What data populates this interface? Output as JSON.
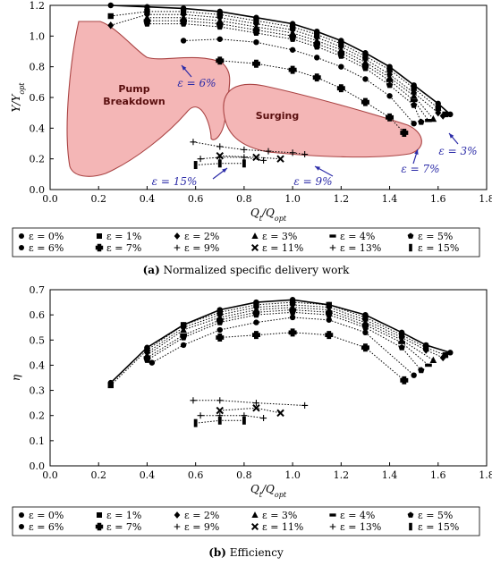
{
  "chart_data": [
    {
      "type": "line",
      "caption_label": "(a)",
      "caption_text": "Normalized specific delivery work",
      "xlabel": "Q_t/Q_opt",
      "ylabel": "Y/Y_opt",
      "xlim": [
        0.0,
        1.8
      ],
      "ylim": [
        0.0,
        1.2
      ],
      "xticks": [
        "0.0",
        "0.2",
        "0.4",
        "0.6",
        "0.8",
        "1.0",
        "1.2",
        "1.4",
        "1.6",
        "1.8"
      ],
      "yticks": [
        "0.0",
        "0.2",
        "0.4",
        "0.6",
        "0.8",
        "1.0",
        "1.2"
      ],
      "grid": false,
      "legend_position": "below",
      "regions": [
        {
          "label_lines": [
            "Pump",
            "Breakdown"
          ],
          "color": "#f4b6b6"
        },
        {
          "label_lines": [
            "Surging"
          ],
          "color": "#f4b6b6"
        }
      ],
      "annotations": [
        "ε = 6%",
        "ε = 15%",
        "ε = 9%",
        "ε = 7%",
        "ε = 3%"
      ],
      "series": [
        {
          "name": "ε = 0%",
          "marker": "circle",
          "x": [
            0.25,
            0.4,
            0.55,
            0.7,
            0.85,
            1.0,
            1.1,
            1.2,
            1.3,
            1.4,
            1.5,
            1.6,
            1.65
          ],
          "y": [
            1.2,
            1.19,
            1.18,
            1.16,
            1.12,
            1.08,
            1.03,
            0.97,
            0.89,
            0.8,
            0.68,
            0.56,
            0.49
          ]
        },
        {
          "name": "ε = 1%",
          "marker": "square",
          "x": [
            0.25,
            0.4,
            0.55,
            0.7,
            0.85,
            1.0,
            1.1,
            1.2,
            1.3,
            1.4,
            1.5,
            1.6,
            1.63
          ],
          "y": [
            1.13,
            1.16,
            1.16,
            1.14,
            1.1,
            1.06,
            1.01,
            0.95,
            0.87,
            0.78,
            0.66,
            0.53,
            0.49
          ]
        },
        {
          "name": "ε = 2%",
          "marker": "diamond",
          "x": [
            0.25,
            0.4,
            0.55,
            0.7,
            0.85,
            1.0,
            1.1,
            1.2,
            1.3,
            1.4,
            1.5,
            1.6,
            1.62
          ],
          "y": [
            1.07,
            1.14,
            1.14,
            1.12,
            1.08,
            1.04,
            0.99,
            0.93,
            0.85,
            0.75,
            0.63,
            0.5,
            0.48
          ]
        },
        {
          "name": "ε = 3%",
          "marker": "triangle",
          "x": [
            0.4,
            0.55,
            0.7,
            0.85,
            1.0,
            1.1,
            1.2,
            1.3,
            1.4,
            1.5,
            1.58
          ],
          "y": [
            1.12,
            1.12,
            1.1,
            1.06,
            1.02,
            0.97,
            0.91,
            0.83,
            0.73,
            0.61,
            0.46
          ]
        },
        {
          "name": "ε = 4%",
          "marker": "dash",
          "x": [
            0.4,
            0.55,
            0.7,
            0.85,
            1.0,
            1.1,
            1.2,
            1.3,
            1.4,
            1.5,
            1.56
          ],
          "y": [
            1.1,
            1.1,
            1.08,
            1.04,
            1.0,
            0.95,
            0.89,
            0.81,
            0.71,
            0.58,
            0.45
          ]
        },
        {
          "name": "ε = 5%",
          "marker": "pentagon",
          "x": [
            0.4,
            0.55,
            0.7,
            0.85,
            1.0,
            1.1,
            1.2,
            1.3,
            1.4,
            1.5,
            1.53
          ],
          "y": [
            1.08,
            1.08,
            1.06,
            1.02,
            0.98,
            0.93,
            0.87,
            0.79,
            0.68,
            0.55,
            0.44
          ]
        },
        {
          "name": "ε = 6%",
          "marker": "circle",
          "x": [
            0.55,
            0.7,
            0.85,
            1.0,
            1.1,
            1.2,
            1.3,
            1.4,
            1.5
          ],
          "y": [
            0.97,
            0.98,
            0.96,
            0.91,
            0.86,
            0.8,
            0.72,
            0.61,
            0.43
          ]
        },
        {
          "name": "ε = 7%",
          "marker": "cross",
          "x": [
            0.7,
            0.85,
            1.0,
            1.1,
            1.2,
            1.3,
            1.4,
            1.46
          ],
          "y": [
            0.84,
            0.82,
            0.78,
            0.73,
            0.66,
            0.57,
            0.47,
            0.37
          ]
        },
        {
          "name": "ε = 9%",
          "marker": "plus",
          "x": [
            0.59,
            0.7,
            0.8,
            0.9,
            1.0,
            1.05
          ],
          "y": [
            0.31,
            0.28,
            0.26,
            0.25,
            0.24,
            0.23
          ]
        },
        {
          "name": "ε = 11%",
          "marker": "x",
          "x": [
            0.7,
            0.85,
            0.95
          ],
          "y": [
            0.22,
            0.21,
            0.2
          ]
        },
        {
          "name": "ε = 13%",
          "marker": "plus",
          "x": [
            0.62,
            0.7,
            0.8,
            0.88
          ],
          "y": [
            0.2,
            0.21,
            0.21,
            0.19
          ]
        },
        {
          "name": "ε = 15%",
          "marker": "bar",
          "x": [
            0.6,
            0.7,
            0.8
          ],
          "y": [
            0.16,
            0.17,
            0.17
          ]
        }
      ]
    },
    {
      "type": "line",
      "caption_label": "(b)",
      "caption_text": "Efficiency",
      "xlabel": "Q_t/Q_opt",
      "ylabel": "η",
      "xlim": [
        0.0,
        1.8
      ],
      "ylim": [
        0.0,
        0.7
      ],
      "xticks": [
        "0.0",
        "0.2",
        "0.4",
        "0.6",
        "0.8",
        "1.0",
        "1.2",
        "1.4",
        "1.6",
        "1.8"
      ],
      "yticks": [
        "0.0",
        "0.1",
        "0.2",
        "0.3",
        "0.4",
        "0.5",
        "0.6",
        "0.7"
      ],
      "grid": false,
      "legend_position": "below",
      "series": [
        {
          "name": "ε = 0%",
          "marker": "circle",
          "x": [
            0.25,
            0.4,
            0.55,
            0.7,
            0.85,
            1.0,
            1.15,
            1.3,
            1.45,
            1.55,
            1.65
          ],
          "y": [
            0.33,
            0.47,
            0.56,
            0.62,
            0.65,
            0.66,
            0.64,
            0.6,
            0.53,
            0.48,
            0.45
          ]
        },
        {
          "name": "ε = 1%",
          "marker": "square",
          "x": [
            0.25,
            0.4,
            0.55,
            0.7,
            0.85,
            1.0,
            1.15,
            1.3,
            1.45,
            1.55,
            1.63
          ],
          "y": [
            0.32,
            0.46,
            0.56,
            0.61,
            0.64,
            0.65,
            0.64,
            0.59,
            0.52,
            0.47,
            0.44
          ]
        },
        {
          "name": "ε = 2%",
          "marker": "diamond",
          "x": [
            0.4,
            0.55,
            0.7,
            0.85,
            1.0,
            1.15,
            1.3,
            1.45,
            1.55,
            1.62
          ],
          "y": [
            0.45,
            0.55,
            0.6,
            0.63,
            0.64,
            0.63,
            0.58,
            0.51,
            0.46,
            0.43
          ]
        },
        {
          "name": "ε = 3%",
          "marker": "triangle",
          "x": [
            0.4,
            0.55,
            0.7,
            0.85,
            1.0,
            1.15,
            1.3,
            1.45,
            1.58
          ],
          "y": [
            0.44,
            0.54,
            0.59,
            0.62,
            0.63,
            0.62,
            0.57,
            0.5,
            0.42
          ]
        },
        {
          "name": "ε = 4%",
          "marker": "dash",
          "x": [
            0.4,
            0.55,
            0.7,
            0.85,
            1.0,
            1.15,
            1.3,
            1.45,
            1.56
          ],
          "y": [
            0.43,
            0.52,
            0.58,
            0.61,
            0.62,
            0.61,
            0.56,
            0.49,
            0.4
          ]
        },
        {
          "name": "ε = 5%",
          "marker": "pentagon",
          "x": [
            0.4,
            0.55,
            0.7,
            0.85,
            1.0,
            1.15,
            1.3,
            1.45,
            1.53
          ],
          "y": [
            0.42,
            0.51,
            0.57,
            0.6,
            0.61,
            0.6,
            0.55,
            0.47,
            0.38
          ]
        },
        {
          "name": "ε = 6%",
          "marker": "circle",
          "x": [
            0.42,
            0.55,
            0.7,
            0.85,
            1.0,
            1.15,
            1.3,
            1.5
          ],
          "y": [
            0.41,
            0.48,
            0.54,
            0.57,
            0.59,
            0.58,
            0.53,
            0.36
          ]
        },
        {
          "name": "ε = 7%",
          "marker": "cross",
          "x": [
            0.7,
            0.85,
            1.0,
            1.15,
            1.3,
            1.46
          ],
          "y": [
            0.51,
            0.52,
            0.53,
            0.52,
            0.47,
            0.34
          ]
        },
        {
          "name": "ε = 9%",
          "marker": "plus",
          "x": [
            0.59,
            0.7,
            0.85,
            1.05
          ],
          "y": [
            0.26,
            0.26,
            0.25,
            0.24
          ]
        },
        {
          "name": "ε = 11%",
          "marker": "x",
          "x": [
            0.7,
            0.85,
            0.95
          ],
          "y": [
            0.22,
            0.23,
            0.21
          ]
        },
        {
          "name": "ε = 13%",
          "marker": "plus",
          "x": [
            0.62,
            0.7,
            0.8,
            0.88
          ],
          "y": [
            0.2,
            0.2,
            0.2,
            0.19
          ]
        },
        {
          "name": "ε = 15%",
          "marker": "bar",
          "x": [
            0.6,
            0.7,
            0.8
          ],
          "y": [
            0.17,
            0.18,
            0.18
          ]
        }
      ]
    }
  ]
}
